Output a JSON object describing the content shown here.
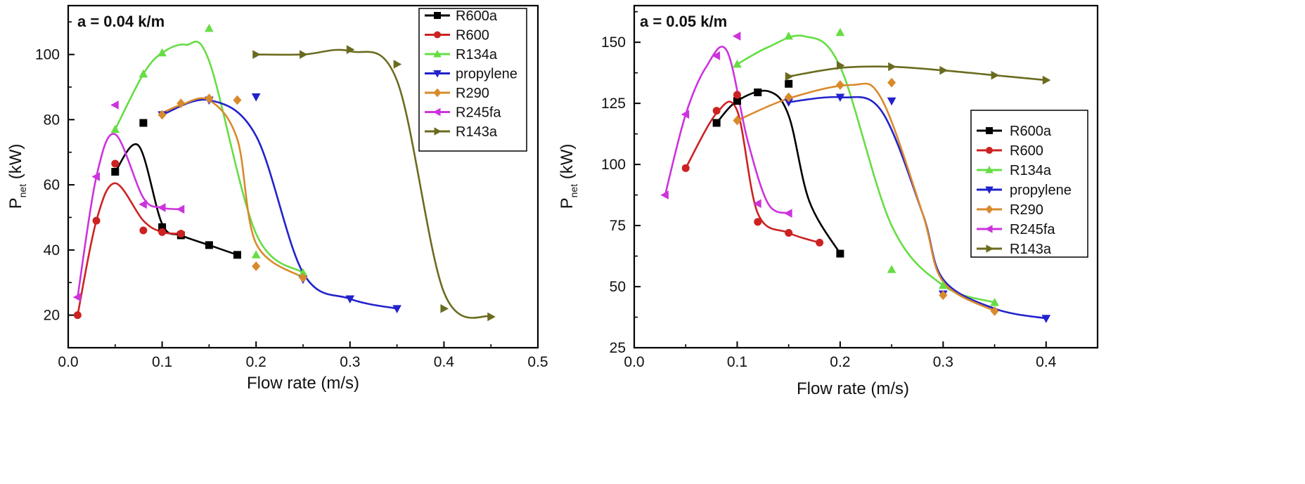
{
  "chart_data": [
    {
      "type": "line",
      "annotation": "a = 0.04 k/m",
      "xlabel": "Flow rate (m/s)",
      "ylabel": "P",
      "ylabel_sub": "net",
      "ylabel_unit": " (kW)",
      "xlim": [
        0.0,
        0.5
      ],
      "ylim": [
        10,
        115
      ],
      "xticks": [
        "0.0",
        "0.1",
        "0.2",
        "0.3",
        "0.4",
        "0.5"
      ],
      "yticks": [
        "20",
        "40",
        "60",
        "80",
        "100"
      ],
      "legend_position": "top-right",
      "series": [
        {
          "name": "R600a",
          "color": "#000000",
          "marker": "square",
          "points": [
            [
              0.05,
              64
            ],
            [
              0.08,
              79
            ],
            [
              0.1,
              47
            ],
            [
              0.12,
              44.5
            ],
            [
              0.15,
              41.5
            ],
            [
              0.18,
              38.5
            ]
          ],
          "curve": [
            [
              0.05,
              64
            ],
            [
              0.075,
              72
            ],
            [
              0.1,
              48
            ],
            [
              0.12,
              44.5
            ],
            [
              0.15,
              41.5
            ],
            [
              0.18,
              38.5
            ]
          ]
        },
        {
          "name": "R600",
          "color": "#cc2222",
          "marker": "circle",
          "points": [
            [
              0.01,
              20
            ],
            [
              0.03,
              49
            ],
            [
              0.05,
              66.5
            ],
            [
              0.08,
              46
            ],
            [
              0.1,
              45.5
            ],
            [
              0.12,
              45
            ]
          ],
          "curve": [
            [
              0.01,
              20
            ],
            [
              0.03,
              49
            ],
            [
              0.05,
              60.5
            ],
            [
              0.08,
              49
            ],
            [
              0.1,
              45.5
            ],
            [
              0.12,
              45
            ]
          ]
        },
        {
          "name": "R134a",
          "color": "#66dd44",
          "marker": "triangle-up",
          "points": [
            [
              0.05,
              77
            ],
            [
              0.08,
              94
            ],
            [
              0.1,
              100.5
            ],
            [
              0.15,
              108
            ],
            [
              0.2,
              38.5
            ],
            [
              0.25,
              33
            ]
          ],
          "curve": [
            [
              0.05,
              77
            ],
            [
              0.08,
              94
            ],
            [
              0.1,
              100.5
            ],
            [
              0.125,
              103
            ],
            [
              0.15,
              98
            ],
            [
              0.2,
              45
            ],
            [
              0.25,
              33
            ]
          ]
        },
        {
          "name": "propylene",
          "color": "#2222cc",
          "marker": "triangle-down",
          "points": [
            [
              0.1,
              81.5
            ],
            [
              0.15,
              86
            ],
            [
              0.2,
              87
            ],
            [
              0.25,
              31
            ],
            [
              0.3,
              25
            ],
            [
              0.35,
              22
            ]
          ],
          "curve": [
            [
              0.1,
              81.5
            ],
            [
              0.15,
              86
            ],
            [
              0.2,
              75
            ],
            [
              0.25,
              33
            ],
            [
              0.3,
              25
            ],
            [
              0.35,
              22
            ]
          ]
        },
        {
          "name": "R290",
          "color": "#d98a2c",
          "marker": "diamond",
          "points": [
            [
              0.1,
              81.5
            ],
            [
              0.12,
              85
            ],
            [
              0.15,
              86.5
            ],
            [
              0.18,
              86
            ],
            [
              0.2,
              35
            ],
            [
              0.25,
              31.5
            ]
          ],
          "curve": [
            [
              0.1,
              82
            ],
            [
              0.12,
              84.5
            ],
            [
              0.15,
              86
            ],
            [
              0.18,
              74
            ],
            [
              0.2,
              42
            ],
            [
              0.25,
              31.5
            ]
          ]
        },
        {
          "name": "R245fa",
          "color": "#cc33dd",
          "marker": "triangle-left",
          "points": [
            [
              0.01,
              25.5
            ],
            [
              0.03,
              62.5
            ],
            [
              0.05,
              84.5
            ],
            [
              0.08,
              54
            ],
            [
              0.1,
              53
            ],
            [
              0.12,
              52.5
            ]
          ],
          "curve": [
            [
              0.01,
              25.5
            ],
            [
              0.03,
              62.5
            ],
            [
              0.05,
              75.5
            ],
            [
              0.08,
              56
            ],
            [
              0.1,
              53
            ],
            [
              0.12,
              52.5
            ]
          ]
        },
        {
          "name": "R143a",
          "color": "#6b6b1f",
          "marker": "triangle-right",
          "points": [
            [
              0.2,
              100
            ],
            [
              0.25,
              100
            ],
            [
              0.3,
              101.5
            ],
            [
              0.35,
              97
            ],
            [
              0.4,
              22
            ],
            [
              0.45,
              19.5
            ]
          ],
          "curve": [
            [
              0.2,
              100
            ],
            [
              0.25,
              100
            ],
            [
              0.3,
              101
            ],
            [
              0.35,
              92
            ],
            [
              0.4,
              27
            ],
            [
              0.45,
              19.5
            ]
          ]
        }
      ]
    },
    {
      "type": "line",
      "annotation": "a = 0.05 k/m",
      "xlabel": "Flow rate (m/s)",
      "ylabel": "P",
      "ylabel_sub": "net",
      "ylabel_unit": " (kW)",
      "xlim": [
        0.0,
        0.45
      ],
      "ylim": [
        25,
        165
      ],
      "xticks": [
        "0.0",
        "0.1",
        "0.2",
        "0.3",
        "0.4"
      ],
      "yticks": [
        "25",
        "50",
        "75",
        "100",
        "125",
        "150"
      ],
      "legend_position": "right",
      "series": [
        {
          "name": "R600a",
          "color": "#000000",
          "marker": "square",
          "points": [
            [
              0.08,
              117
            ],
            [
              0.1,
              126
            ],
            [
              0.12,
              129.5
            ],
            [
              0.15,
              133
            ],
            [
              0.2,
              63.5
            ]
          ],
          "curve": [
            [
              0.08,
              117
            ],
            [
              0.1,
              126
            ],
            [
              0.13,
              130
            ],
            [
              0.15,
              120
            ],
            [
              0.17,
              85
            ],
            [
              0.2,
              63.5
            ]
          ]
        },
        {
          "name": "R600",
          "color": "#cc2222",
          "marker": "circle",
          "points": [
            [
              0.05,
              98.5
            ],
            [
              0.08,
              122
            ],
            [
              0.1,
              128.5
            ],
            [
              0.12,
              76.5
            ],
            [
              0.15,
              72
            ],
            [
              0.18,
              68
            ]
          ],
          "curve": [
            [
              0.05,
              98.5
            ],
            [
              0.08,
              121
            ],
            [
              0.1,
              122
            ],
            [
              0.12,
              80
            ],
            [
              0.15,
              72
            ],
            [
              0.18,
              68
            ]
          ]
        },
        {
          "name": "R134a",
          "color": "#66dd44",
          "marker": "triangle-up",
          "points": [
            [
              0.1,
              141
            ],
            [
              0.15,
              152.5
            ],
            [
              0.2,
              154
            ],
            [
              0.25,
              57
            ],
            [
              0.3,
              50.5
            ],
            [
              0.35,
              43.5
            ]
          ],
          "curve": [
            [
              0.1,
              141
            ],
            [
              0.13,
              148
            ],
            [
              0.165,
              152.5
            ],
            [
              0.2,
              140
            ],
            [
              0.25,
              75
            ],
            [
              0.3,
              50.5
            ],
            [
              0.35,
              43.5
            ]
          ]
        },
        {
          "name": "propylene",
          "color": "#2222cc",
          "marker": "triangle-down",
          "points": [
            [
              0.15,
              125.5
            ],
            [
              0.2,
              127.5
            ],
            [
              0.25,
              126
            ],
            [
              0.3,
              47
            ],
            [
              0.4,
              37
            ]
          ],
          "curve": [
            [
              0.15,
              125.5
            ],
            [
              0.2,
              127.5
            ],
            [
              0.24,
              122
            ],
            [
              0.28,
              80
            ],
            [
              0.3,
              53
            ],
            [
              0.35,
              41
            ],
            [
              0.4,
              37
            ]
          ]
        },
        {
          "name": "R290",
          "color": "#d98a2c",
          "marker": "diamond",
          "points": [
            [
              0.1,
              118
            ],
            [
              0.15,
              127.5
            ],
            [
              0.2,
              132.5
            ],
            [
              0.25,
              133.5
            ],
            [
              0.3,
              46.5
            ],
            [
              0.35,
              40
            ]
          ],
          "curve": [
            [
              0.1,
              118
            ],
            [
              0.15,
              127
            ],
            [
              0.21,
              132.5
            ],
            [
              0.24,
              127
            ],
            [
              0.28,
              80
            ],
            [
              0.3,
              52
            ],
            [
              0.35,
              40
            ]
          ]
        },
        {
          "name": "R245fa",
          "color": "#cc33dd",
          "marker": "triangle-left",
          "points": [
            [
              0.03,
              87.5
            ],
            [
              0.05,
              120.5
            ],
            [
              0.08,
              144.5
            ],
            [
              0.1,
              152.5
            ],
            [
              0.12,
              84
            ],
            [
              0.15,
              80
            ]
          ],
          "curve": [
            [
              0.03,
              87.5
            ],
            [
              0.05,
              120.5
            ],
            [
              0.07,
              140
            ],
            [
              0.09,
              146.5
            ],
            [
              0.11,
              110
            ],
            [
              0.13,
              84
            ],
            [
              0.15,
              80
            ]
          ]
        },
        {
          "name": "R143a",
          "color": "#6b6b1f",
          "marker": "triangle-right",
          "points": [
            [
              0.15,
              136
            ],
            [
              0.2,
              140.5
            ],
            [
              0.25,
              140
            ],
            [
              0.3,
              138.5
            ],
            [
              0.35,
              136.5
            ],
            [
              0.4,
              134.5
            ]
          ],
          "curve": [
            [
              0.15,
              136
            ],
            [
              0.2,
              139.5
            ],
            [
              0.25,
              140
            ],
            [
              0.3,
              138.5
            ],
            [
              0.35,
              136.5
            ],
            [
              0.4,
              134.5
            ]
          ]
        }
      ]
    }
  ]
}
